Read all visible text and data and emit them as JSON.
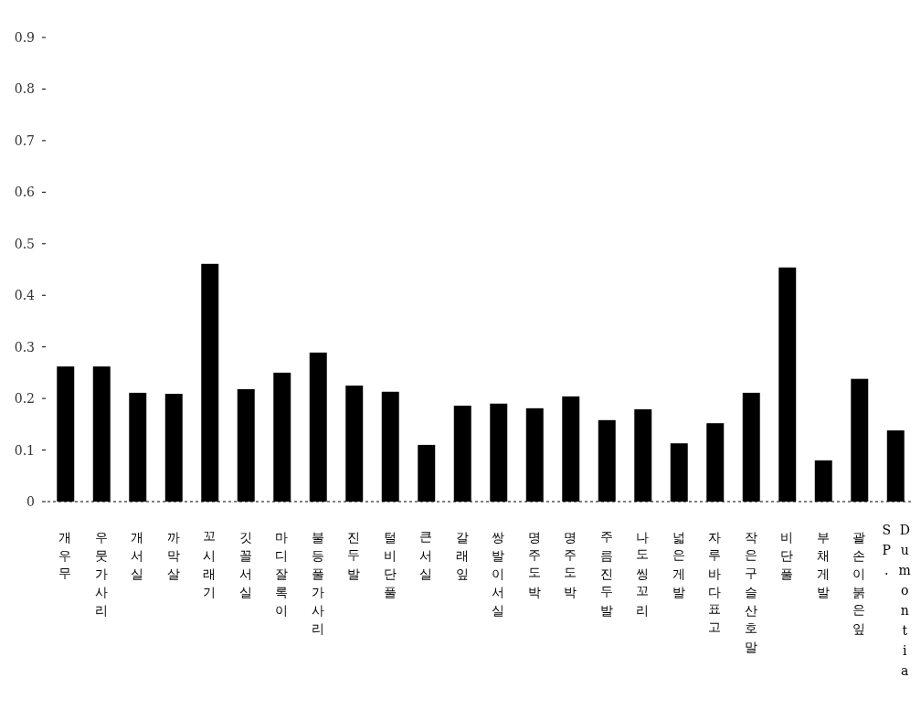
{
  "chart_data": {
    "type": "bar",
    "categories": [
      "개우무",
      "우뭇가사리",
      "개서실",
      "까막살",
      "꼬시래기",
      "깃꼴서실",
      "마디잘록이",
      "불등풀가사리",
      "진두발",
      "털비단풀",
      "큰서실",
      "갈래잎",
      "쌍발이서실",
      "명주도박",
      "명주도박",
      "주름진두발",
      "나도씽꼬리",
      "넓은게발",
      "자루바다표고",
      "작은구슬산호말",
      "비단풀",
      "부채게발",
      "괄손이붉은잎",
      "Dumontia SP."
    ],
    "values": [
      0.262,
      0.262,
      0.211,
      0.209,
      0.461,
      0.218,
      0.25,
      0.289,
      0.225,
      0.213,
      0.11,
      0.186,
      0.19,
      0.181,
      0.204,
      0.158,
      0.179,
      0.113,
      0.152,
      0.211,
      0.454,
      0.08,
      0.238,
      0.138
    ],
    "color": "#000000",
    "ylim": [
      0,
      0.9
    ],
    "yticks": [
      0,
      0.1,
      0.2,
      0.3,
      0.4,
      0.5,
      0.6,
      0.7,
      0.8,
      0.9
    ],
    "grid": false
  }
}
